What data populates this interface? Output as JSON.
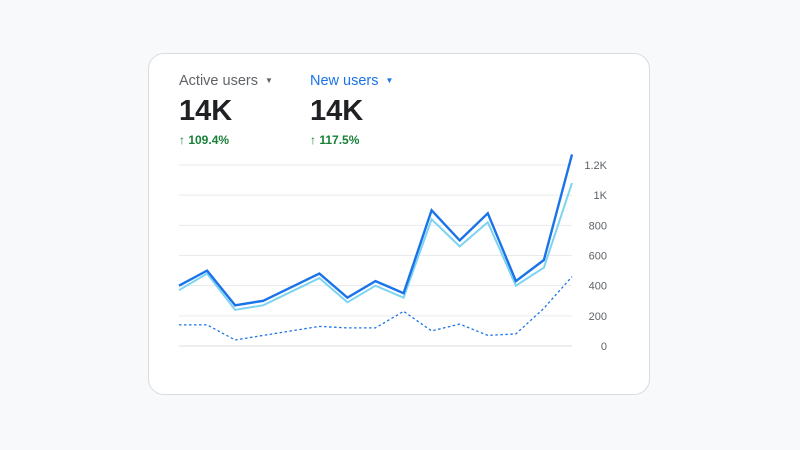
{
  "metrics": [
    {
      "label": "Active users",
      "value": "14K",
      "change": "↑ 109.4%",
      "label_color": "#5f6368",
      "caret_icon": "caret-down-icon"
    },
    {
      "label": "New users",
      "value": "14K",
      "change": "↑ 117.5%",
      "label_color": "#1a73e8",
      "caret_icon": "caret-down-icon"
    }
  ],
  "chart_data": {
    "type": "line",
    "x": [
      1,
      2,
      3,
      4,
      5,
      6,
      7,
      8,
      9,
      10,
      11,
      12,
      13,
      14,
      15
    ],
    "series": [
      {
        "color": "#1a73e8",
        "style": "solid",
        "values": [
          400,
          500,
          270,
          300,
          390,
          480,
          320,
          430,
          350,
          900,
          700,
          880,
          430,
          570,
          1270
        ]
      },
      {
        "color": "#7dd3f0",
        "style": "solid",
        "values": [
          370,
          480,
          240,
          270,
          360,
          450,
          290,
          400,
          320,
          840,
          660,
          820,
          400,
          520,
          1080
        ]
      },
      {
        "color": "#1a73e8",
        "style": "dotted",
        "values": [
          140,
          140,
          40,
          70,
          100,
          130,
          120,
          120,
          230,
          100,
          145,
          70,
          80,
          250,
          460
        ]
      }
    ],
    "y_ticks": [
      {
        "value": 0,
        "label": "0"
      },
      {
        "value": 200,
        "label": "200"
      },
      {
        "value": 400,
        "label": "400"
      },
      {
        "value": 600,
        "label": "600"
      },
      {
        "value": 800,
        "label": "800"
      },
      {
        "value": 1000,
        "label": "1K"
      },
      {
        "value": 1200,
        "label": "1.2K"
      }
    ],
    "ylim": [
      0,
      1200
    ],
    "y_axis_position": "right",
    "grid": true,
    "gridline_color": "#e8eaed",
    "baseline_color": "#dadce0"
  }
}
